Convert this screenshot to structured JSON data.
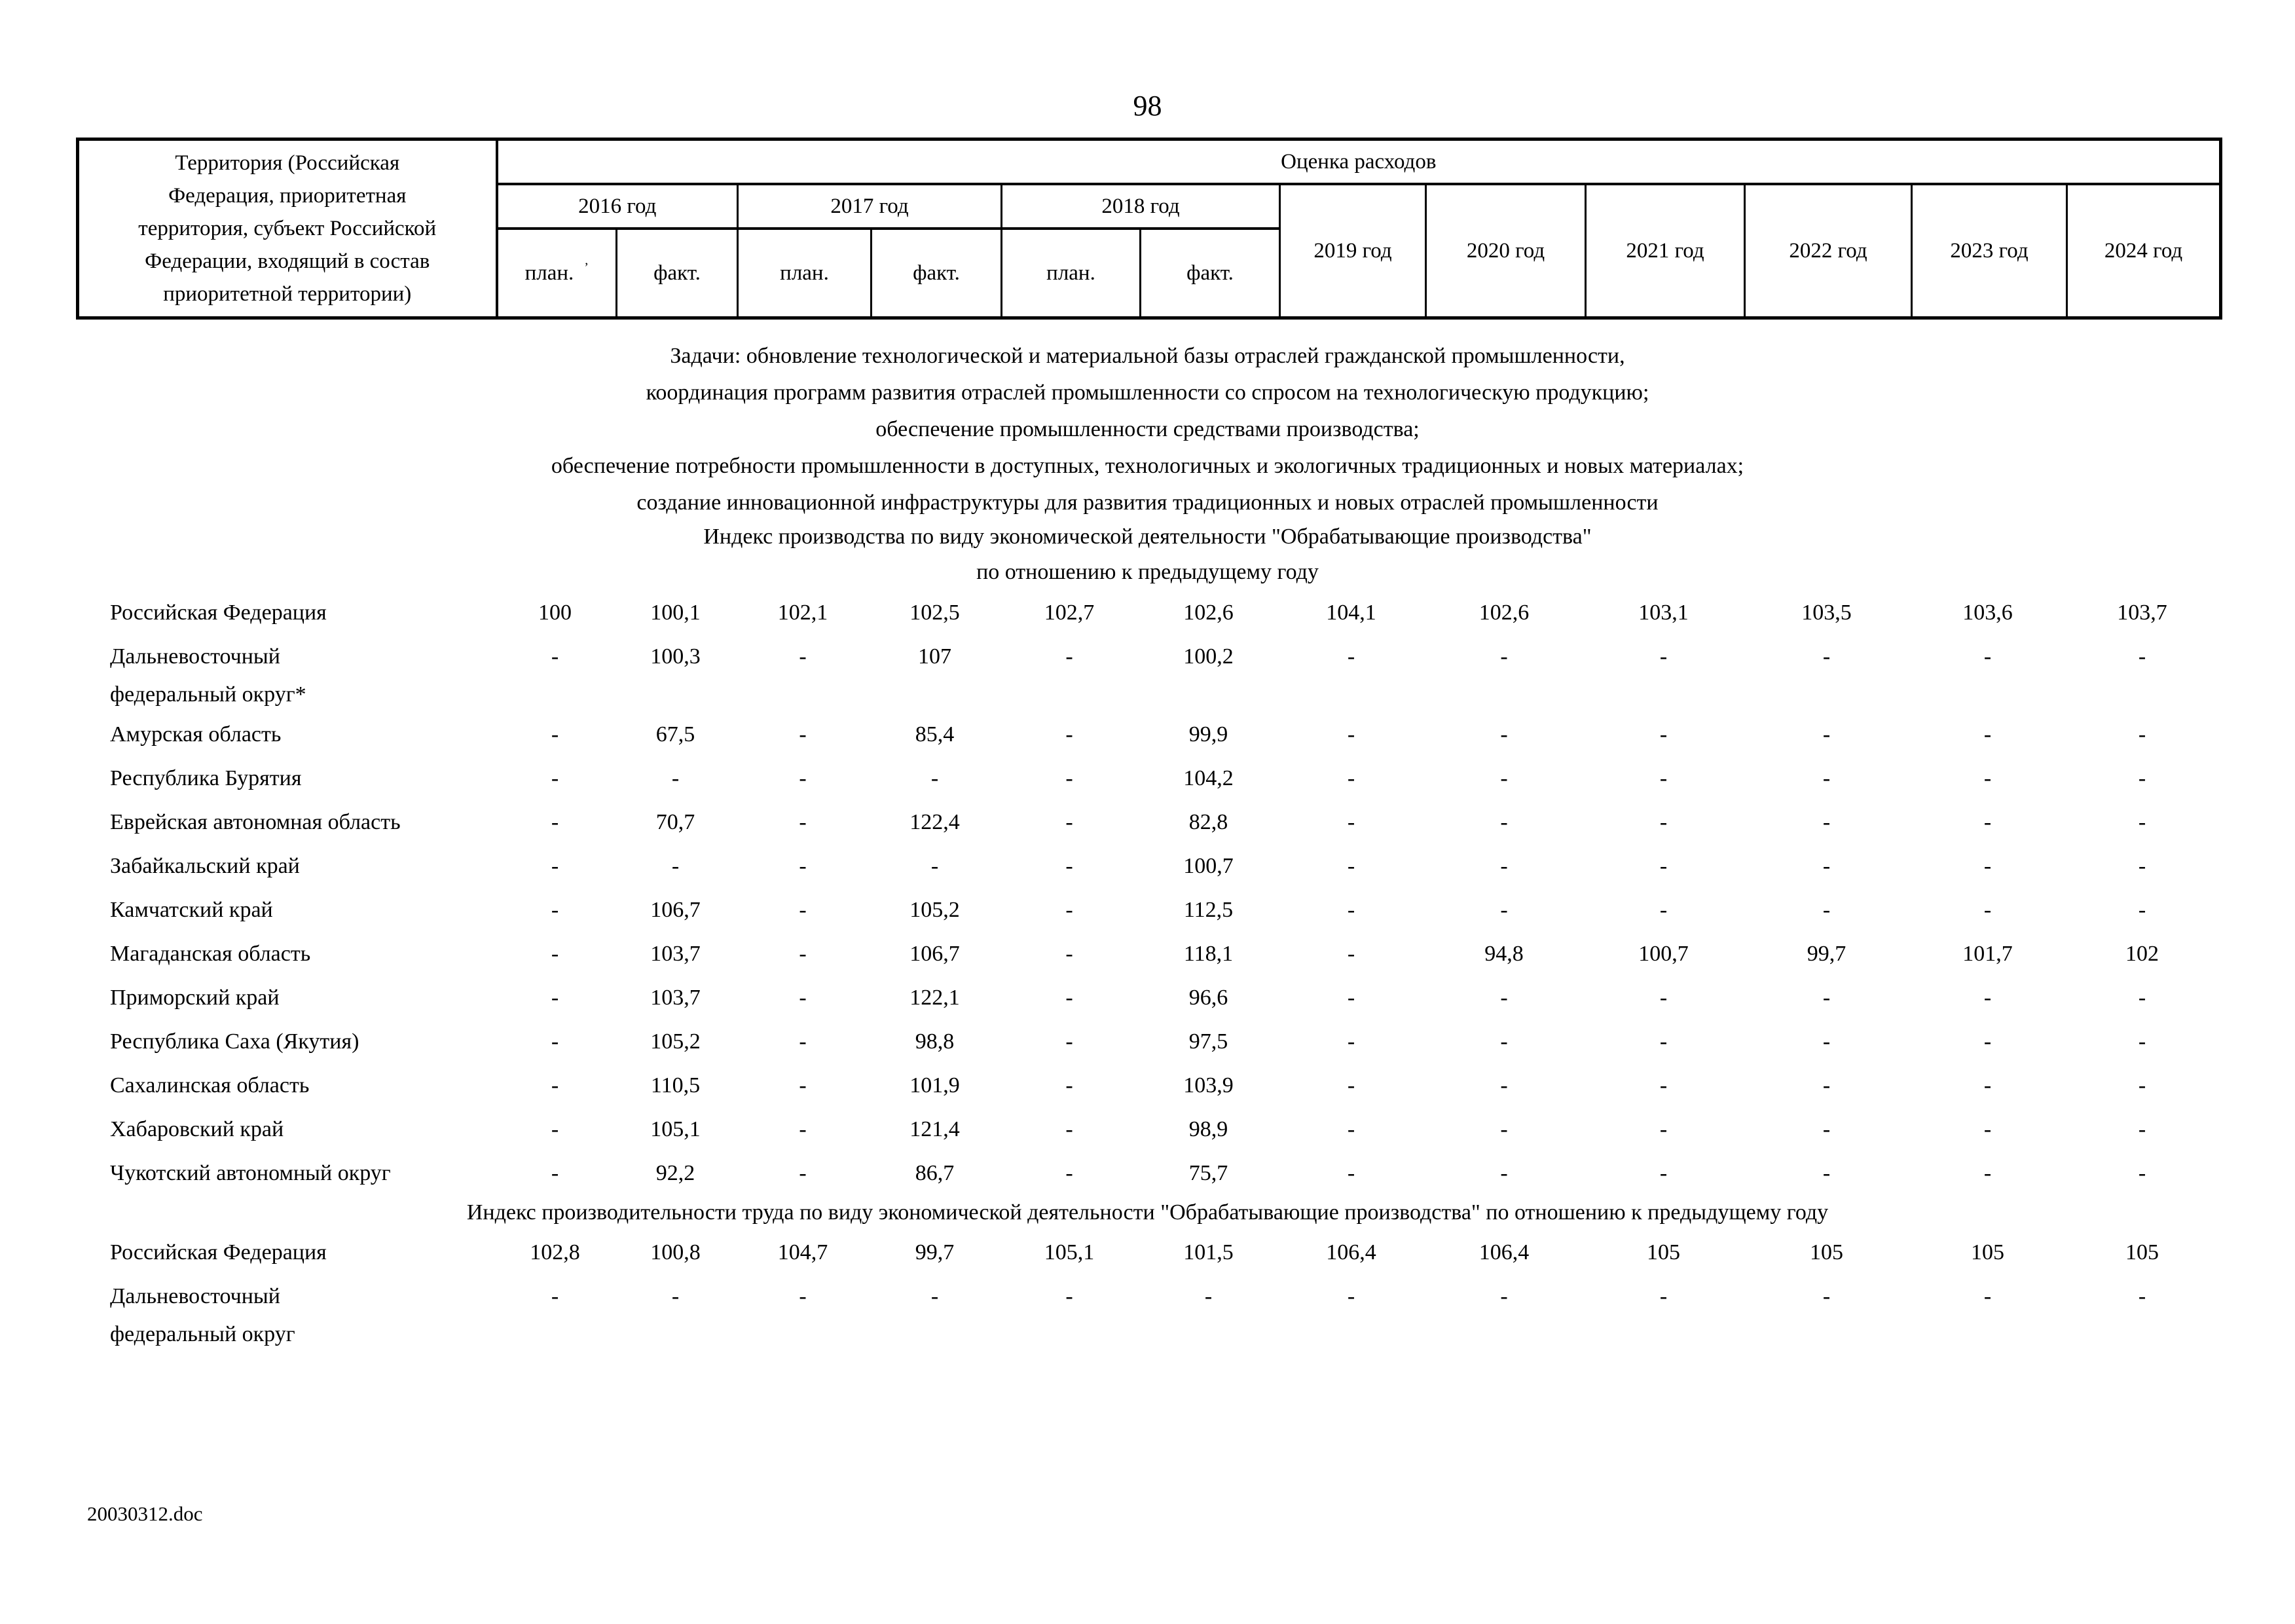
{
  "page": {
    "number": "98",
    "footer": "20030312.doc"
  },
  "header": {
    "territory_lines": [
      "Территория (Российская",
      "Федерация, приоритетная",
      "территория, субъект Российской",
      "Федерации, входящий в состав",
      "приоритетной территории)"
    ],
    "expenses_label": "Оценка расходов",
    "year_groups": [
      "2016 год",
      "2017 год",
      "2018 год"
    ],
    "plan_label": "план.",
    "plan_artifact": "ʼ",
    "fact_label": "факт.",
    "years": [
      "2019 год",
      "2020 год",
      "2021 год",
      "2022 год",
      "2023 год",
      "2024 год"
    ]
  },
  "tasks": {
    "lines": [
      "Задачи: обновление технологической и материальной базы отраслей гражданской промышленности,",
      "координация программ развития отраслей промышленности со спросом на технологическую продукцию;",
      "обеспечение промышленности средствами производства;",
      "обеспечение потребности промышленности в доступных, технологичных и экологичных традиционных и новых материалах;",
      "создание инновационной инфраструктуры для развития традиционных и новых отраслей промышленности"
    ]
  },
  "sections": [
    {
      "title_lines": [
        "Индекс производства по виду экономической деятельности \"Обрабатывающие производства\"",
        "по отношению к предыдущему году"
      ],
      "rows": [
        {
          "label_lines": [
            "Российская Федерация"
          ],
          "values": [
            "100",
            "100,1",
            "102,1",
            "102,5",
            "102,7",
            "102,6",
            "104,1",
            "102,6",
            "103,1",
            "103,5",
            "103,6",
            "103,7"
          ]
        },
        {
          "label_lines": [
            "Дальневосточный",
            "федеральный округ*"
          ],
          "values": [
            "-",
            "100,3",
            "-",
            "107",
            "-",
            "100,2",
            "-",
            "-",
            "-",
            "-",
            "-",
            "-"
          ]
        },
        {
          "label_lines": [
            "Амурская область"
          ],
          "values": [
            "-",
            "67,5",
            "-",
            "85,4",
            "-",
            "99,9",
            "-",
            "-",
            "-",
            "-",
            "-",
            "-"
          ]
        },
        {
          "label_lines": [
            "Республика Бурятия"
          ],
          "values": [
            "-",
            "-",
            "-",
            "-",
            "-",
            "104,2",
            "-",
            "-",
            "-",
            "-",
            "-",
            "-"
          ]
        },
        {
          "label_lines": [
            "Еврейская автономная область"
          ],
          "values": [
            "-",
            "70,7",
            "-",
            "122,4",
            "-",
            "82,8",
            "-",
            "-",
            "-",
            "-",
            "-",
            "-"
          ]
        },
        {
          "label_lines": [
            "Забайкальский край"
          ],
          "values": [
            "-",
            "-",
            "-",
            "-",
            "-",
            "100,7",
            "-",
            "-",
            "-",
            "-",
            "-",
            "-"
          ]
        },
        {
          "label_lines": [
            "Камчатский край"
          ],
          "values": [
            "-",
            "106,7",
            "-",
            "105,2",
            "-",
            "112,5",
            "-",
            "-",
            "-",
            "-",
            "-",
            "-"
          ]
        },
        {
          "label_lines": [
            "Магаданская область"
          ],
          "values": [
            "-",
            "103,7",
            "-",
            "106,7",
            "-",
            "118,1",
            "-",
            "94,8",
            "100,7",
            "99,7",
            "101,7",
            "102"
          ]
        },
        {
          "label_lines": [
            "Приморский край"
          ],
          "values": [
            "-",
            "103,7",
            "-",
            "122,1",
            "-",
            "96,6",
            "-",
            "-",
            "-",
            "-",
            "-",
            "-"
          ]
        },
        {
          "label_lines": [
            "Республика Саха (Якутия)"
          ],
          "values": [
            "-",
            "105,2",
            "-",
            "98,8",
            "-",
            "97,5",
            "-",
            "-",
            "-",
            "-",
            "-",
            "-"
          ]
        },
        {
          "label_lines": [
            "Сахалинская область"
          ],
          "values": [
            "-",
            "110,5",
            "-",
            "101,9",
            "-",
            "103,9",
            "-",
            "-",
            "-",
            "-",
            "-",
            "-"
          ]
        },
        {
          "label_lines": [
            "Хабаровский край"
          ],
          "values": [
            "-",
            "105,1",
            "-",
            "121,4",
            "-",
            "98,9",
            "-",
            "-",
            "-",
            "-",
            "-",
            "-"
          ]
        },
        {
          "label_lines": [
            "Чукотский автономный округ"
          ],
          "values": [
            "-",
            "92,2",
            "-",
            "86,7",
            "-",
            "75,7",
            "-",
            "-",
            "-",
            "-",
            "-",
            "-"
          ]
        }
      ]
    },
    {
      "title_lines": [
        "Индекс производительности труда по виду экономической деятельности \"Обрабатывающие производства\" по отношению к предыдущему году"
      ],
      "rows": [
        {
          "label_lines": [
            "Российская Федерация"
          ],
          "values": [
            "102,8",
            "100,8",
            "104,7",
            "99,7",
            "105,1",
            "101,5",
            "106,4",
            "106,4",
            "105",
            "105",
            "105",
            "105"
          ]
        },
        {
          "label_lines": [
            "Дальневосточный",
            "федеральный округ"
          ],
          "values": [
            "-",
            "-",
            "-",
            "-",
            "-",
            "-",
            "-",
            "-",
            "-",
            "-",
            "-",
            "-"
          ]
        }
      ]
    }
  ]
}
